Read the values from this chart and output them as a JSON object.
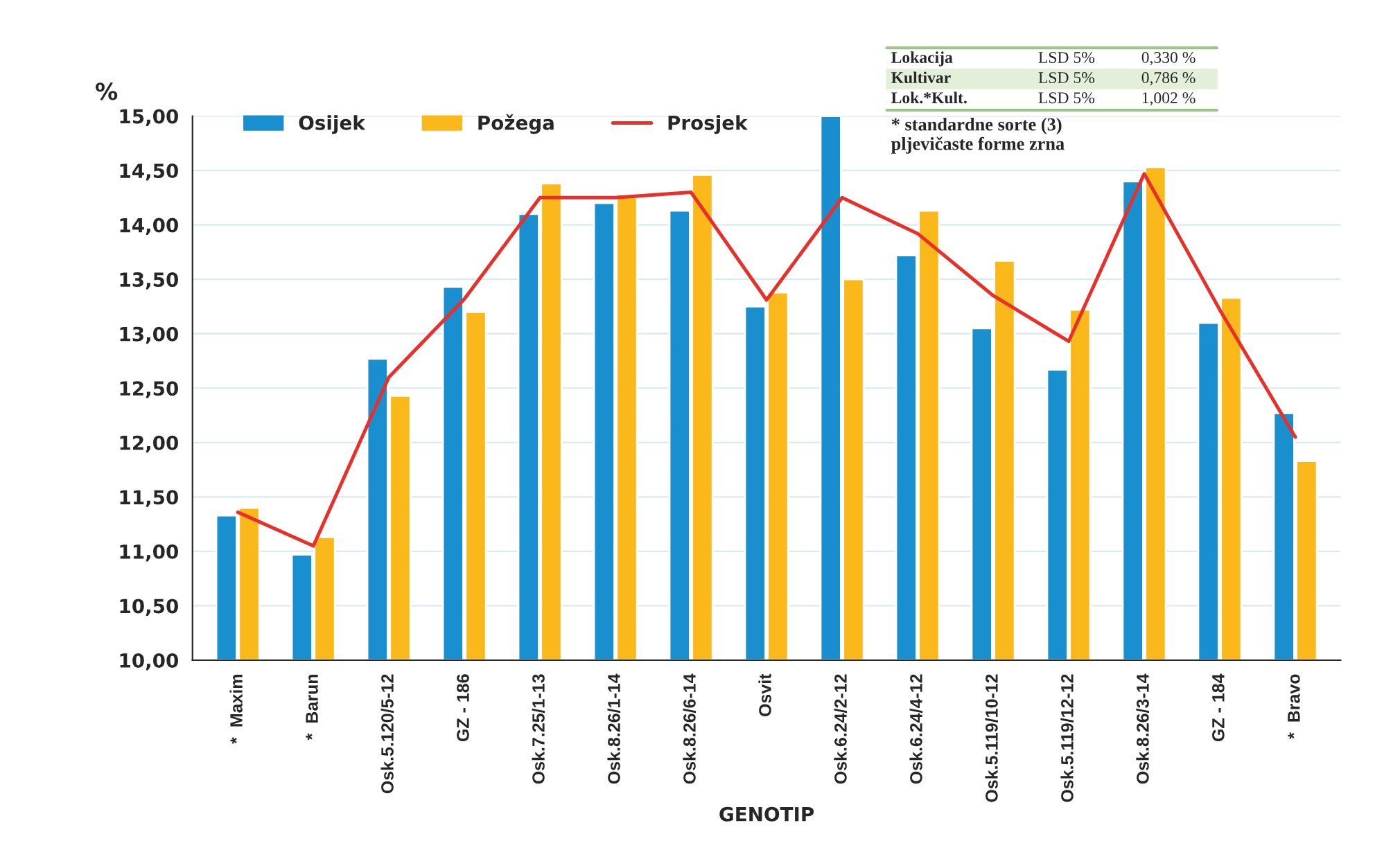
{
  "chart_data": {
    "type": "bar",
    "ylabel": "%",
    "xlabel": "GENOTIP",
    "categories": [
      "*  Maxim",
      "*  Barun",
      "Osk.5.120/5-12",
      "GZ - 186",
      "Osk.7.25/1-13",
      "Osk.8.26/1-14",
      "Osk.8.26/6-14",
      "Osvit",
      "Osk.6.24/2-12",
      "Osk.6.24/4-12",
      "Osk.5.119/10-12",
      "Osk.5.119/12-12",
      "Osk.8.26/3-14",
      "GZ - 184",
      "*  Bravo"
    ],
    "series": [
      {
        "name": "Osijek",
        "color": "#1a8fd0",
        "values": [
          11.33,
          10.97,
          12.77,
          13.43,
          14.1,
          14.2,
          14.13,
          13.25,
          15.0,
          13.72,
          13.05,
          12.67,
          14.4,
          13.1,
          12.27
        ]
      },
      {
        "name": "Požega",
        "color": "#fbb81b",
        "values": [
          11.4,
          11.13,
          12.43,
          13.2,
          14.38,
          14.28,
          14.46,
          13.38,
          13.5,
          14.13,
          13.67,
          13.22,
          14.53,
          13.33,
          11.83
        ]
      },
      {
        "name": "Prosjek",
        "type": "line",
        "color": "#e8302a",
        "values": [
          11.36,
          11.05,
          12.6,
          13.32,
          14.25,
          14.25,
          14.3,
          13.31,
          14.25,
          13.92,
          13.35,
          12.93,
          14.47,
          13.22,
          12.05
        ]
      }
    ],
    "ylim": [
      10,
      15
    ],
    "yticks": [
      {
        "value": 10,
        "label": "10,00"
      },
      {
        "value": 10.5,
        "label": "10,50"
      },
      {
        "value": 11,
        "label": "11,00"
      },
      {
        "value": 11.5,
        "label": "11,50"
      },
      {
        "value": 12,
        "label": "12,00"
      },
      {
        "value": 12.5,
        "label": "12,50"
      },
      {
        "value": 13,
        "label": "13,00"
      },
      {
        "value": 13.5,
        "label": "13,50"
      },
      {
        "value": 14,
        "label": "14,00"
      },
      {
        "value": 14.5,
        "label": "14,50"
      },
      {
        "value": 15,
        "label": "15,00"
      }
    ],
    "grid": "y",
    "legend": "top left",
    "marker": "none",
    "line_style": "solid",
    "annotations": [
      "Lokacija\tLSD 5%\t0,330 %",
      "Kultivar\tLSD 5%\t0,786 %",
      "Lok.*Kult.\tLSD 5%\t1,002 %",
      "* standardne sorte (3)\npljevičaste forme zrna"
    ]
  }
}
